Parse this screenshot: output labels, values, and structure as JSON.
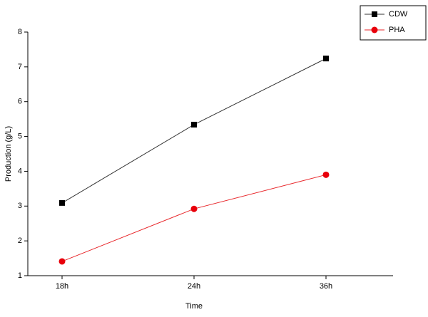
{
  "chart_data": {
    "type": "line",
    "x_label": "Time",
    "y_label": "Production (g/L)",
    "categories": [
      "18h",
      "24h",
      "36h"
    ],
    "series": [
      {
        "name": "CDW",
        "color": "#333333",
        "marker_color": "#000000",
        "marker": "square",
        "values": [
          3.09,
          5.34,
          7.24
        ]
      },
      {
        "name": "PHA",
        "color": "#e8262a",
        "marker_color": "#e8000b",
        "marker": "circle",
        "values": [
          1.41,
          2.92,
          3.9
        ]
      }
    ],
    "ylim": [
      1,
      8
    ],
    "yticks": [
      1,
      2,
      3,
      4,
      5,
      6,
      7,
      8
    ],
    "legend": "upper-right",
    "grid": false
  }
}
